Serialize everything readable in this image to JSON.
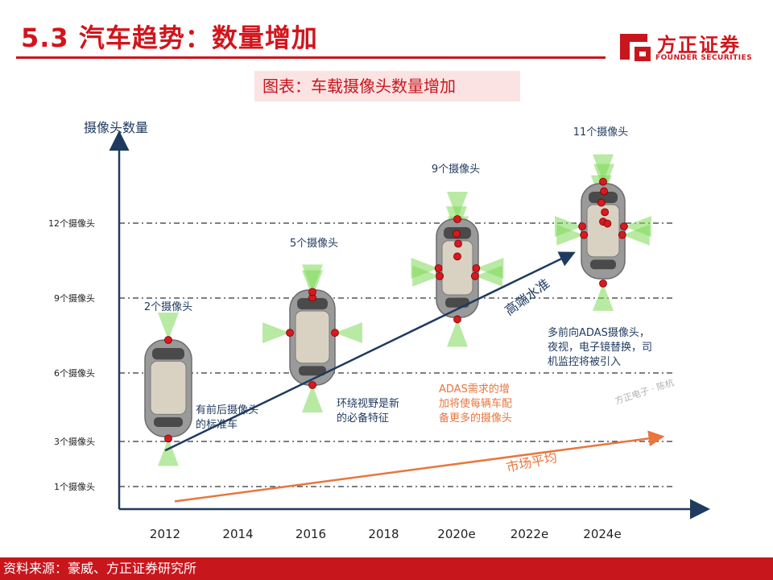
{
  "header": {
    "title": "5.3 汽车趋势：数量增加",
    "logo_cn": "方正证券",
    "logo_en": "FOUNDER SECURITIES"
  },
  "caption": "图表：车载摄像头数量增加",
  "footer": "资料来源：豪威、方正证券研究所",
  "watermark": "方正电子 · 陈杭",
  "colors": {
    "brand_red": "#c8161d",
    "high_end_arrow": "#1f3a5f",
    "market_arrow": "#e8763d",
    "camera_dot": "#d8191f",
    "camera_cone": "#7ed957"
  },
  "chart_data": {
    "type": "line",
    "ylabel": "摄像头数量",
    "x": [
      "2012",
      "2014",
      "2016",
      "2018",
      "2020e",
      "2022e",
      "2024e"
    ],
    "y_ticks": [
      {
        "value": 1,
        "label": "1个摄像头"
      },
      {
        "value": 3,
        "label": "3个摄像头"
      },
      {
        "value": 6,
        "label": "6个摄像头"
      },
      {
        "value": 9,
        "label": "9个摄像头"
      },
      {
        "value": 12,
        "label": "12个摄像头"
      }
    ],
    "grid": "dashed horizontal lines at tick values",
    "series": [
      {
        "name": "高端水准",
        "start": {
          "x": "2012",
          "y": 2.6
        },
        "end": {
          "x": "2024e",
          "y": 11
        }
      },
      {
        "name": "市场平均",
        "start": {
          "x": "2012",
          "y": 0.2
        },
        "end": {
          "x": "2024e",
          "y": 3.4
        }
      }
    ],
    "vehicles": [
      {
        "year": "2012",
        "count_label": "2个摄像头",
        "cameras": 2
      },
      {
        "year": "2016",
        "count_label": "5个摄像头",
        "cameras": 5
      },
      {
        "year": "2020e",
        "count_label": "9个摄像头",
        "cameras": 9
      },
      {
        "year": "2024e",
        "count_label": "11个摄像头",
        "cameras": 11
      }
    ],
    "annotations": [
      {
        "lines": [
          "有前后摄像头",
          "的标准车"
        ]
      },
      {
        "lines": [
          "环绕视野是新",
          "的必备特征"
        ]
      },
      {
        "lines": [
          "多前向ADAS摄像头，",
          "夜视，电子镜替换，司",
          "机监控将被引入"
        ]
      },
      {
        "lines": [
          "ADAS需求的增",
          "加将使每辆车配",
          "备更多的摄像头"
        ]
      }
    ]
  }
}
